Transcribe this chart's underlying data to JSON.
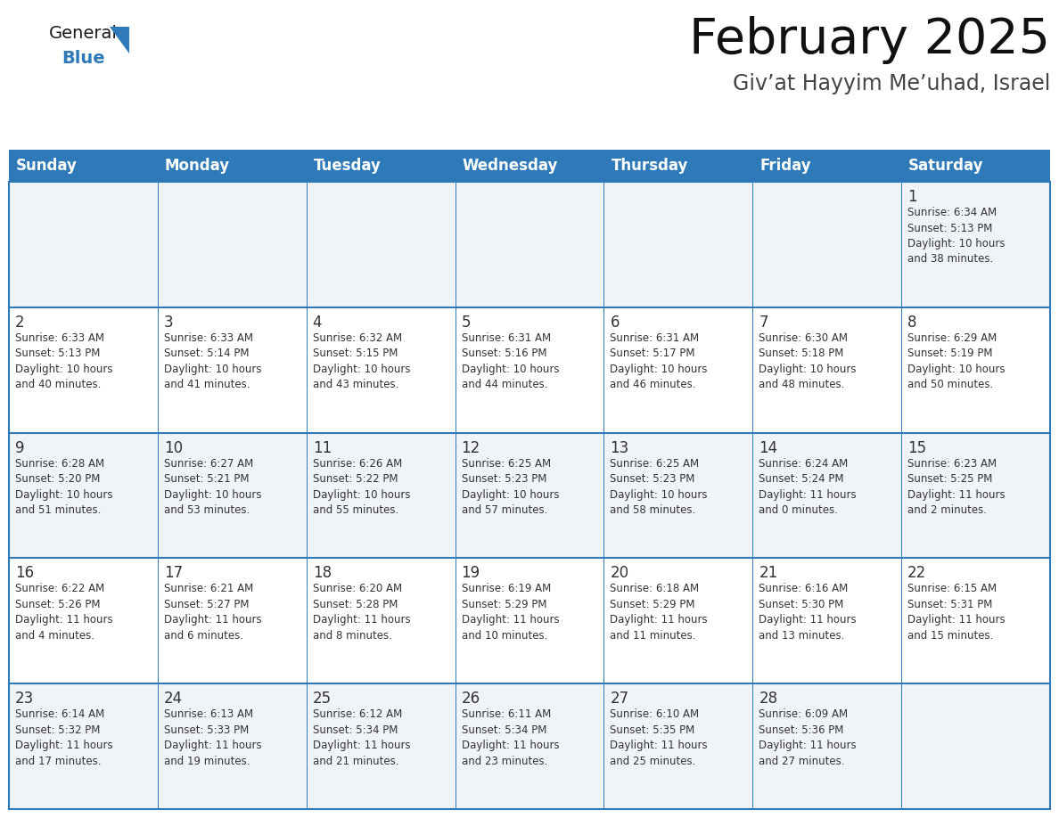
{
  "title": "February 2025",
  "subtitle": "Giv’at Hayyim Me’uhad, Israel",
  "header_bg": "#2E7AB8",
  "header_text_color": "#FFFFFF",
  "cell_border_color": "#2E7AB8",
  "day_number_color": "#333333",
  "detail_text_color": "#333333",
  "background_color": "#FFFFFF",
  "cell_bg_odd": "#F0F4F8",
  "cell_bg_even": "#FFFFFF",
  "days_of_week": [
    "Sunday",
    "Monday",
    "Tuesday",
    "Wednesday",
    "Thursday",
    "Friday",
    "Saturday"
  ],
  "weeks": [
    [
      {
        "day": "",
        "sunrise": "",
        "sunset": "",
        "daylight": ""
      },
      {
        "day": "",
        "sunrise": "",
        "sunset": "",
        "daylight": ""
      },
      {
        "day": "",
        "sunrise": "",
        "sunset": "",
        "daylight": ""
      },
      {
        "day": "",
        "sunrise": "",
        "sunset": "",
        "daylight": ""
      },
      {
        "day": "",
        "sunrise": "",
        "sunset": "",
        "daylight": ""
      },
      {
        "day": "",
        "sunrise": "",
        "sunset": "",
        "daylight": ""
      },
      {
        "day": "1",
        "sunrise": "6:34 AM",
        "sunset": "5:13 PM",
        "daylight": "10 hours\nand 38 minutes."
      }
    ],
    [
      {
        "day": "2",
        "sunrise": "6:33 AM",
        "sunset": "5:13 PM",
        "daylight": "10 hours\nand 40 minutes."
      },
      {
        "day": "3",
        "sunrise": "6:33 AM",
        "sunset": "5:14 PM",
        "daylight": "10 hours\nand 41 minutes."
      },
      {
        "day": "4",
        "sunrise": "6:32 AM",
        "sunset": "5:15 PM",
        "daylight": "10 hours\nand 43 minutes."
      },
      {
        "day": "5",
        "sunrise": "6:31 AM",
        "sunset": "5:16 PM",
        "daylight": "10 hours\nand 44 minutes."
      },
      {
        "day": "6",
        "sunrise": "6:31 AM",
        "sunset": "5:17 PM",
        "daylight": "10 hours\nand 46 minutes."
      },
      {
        "day": "7",
        "sunrise": "6:30 AM",
        "sunset": "5:18 PM",
        "daylight": "10 hours\nand 48 minutes."
      },
      {
        "day": "8",
        "sunrise": "6:29 AM",
        "sunset": "5:19 PM",
        "daylight": "10 hours\nand 50 minutes."
      }
    ],
    [
      {
        "day": "9",
        "sunrise": "6:28 AM",
        "sunset": "5:20 PM",
        "daylight": "10 hours\nand 51 minutes."
      },
      {
        "day": "10",
        "sunrise": "6:27 AM",
        "sunset": "5:21 PM",
        "daylight": "10 hours\nand 53 minutes."
      },
      {
        "day": "11",
        "sunrise": "6:26 AM",
        "sunset": "5:22 PM",
        "daylight": "10 hours\nand 55 minutes."
      },
      {
        "day": "12",
        "sunrise": "6:25 AM",
        "sunset": "5:23 PM",
        "daylight": "10 hours\nand 57 minutes."
      },
      {
        "day": "13",
        "sunrise": "6:25 AM",
        "sunset": "5:23 PM",
        "daylight": "10 hours\nand 58 minutes."
      },
      {
        "day": "14",
        "sunrise": "6:24 AM",
        "sunset": "5:24 PM",
        "daylight": "11 hours\nand 0 minutes."
      },
      {
        "day": "15",
        "sunrise": "6:23 AM",
        "sunset": "5:25 PM",
        "daylight": "11 hours\nand 2 minutes."
      }
    ],
    [
      {
        "day": "16",
        "sunrise": "6:22 AM",
        "sunset": "5:26 PM",
        "daylight": "11 hours\nand 4 minutes."
      },
      {
        "day": "17",
        "sunrise": "6:21 AM",
        "sunset": "5:27 PM",
        "daylight": "11 hours\nand 6 minutes."
      },
      {
        "day": "18",
        "sunrise": "6:20 AM",
        "sunset": "5:28 PM",
        "daylight": "11 hours\nand 8 minutes."
      },
      {
        "day": "19",
        "sunrise": "6:19 AM",
        "sunset": "5:29 PM",
        "daylight": "11 hours\nand 10 minutes."
      },
      {
        "day": "20",
        "sunrise": "6:18 AM",
        "sunset": "5:29 PM",
        "daylight": "11 hours\nand 11 minutes."
      },
      {
        "day": "21",
        "sunrise": "6:16 AM",
        "sunset": "5:30 PM",
        "daylight": "11 hours\nand 13 minutes."
      },
      {
        "day": "22",
        "sunrise": "6:15 AM",
        "sunset": "5:31 PM",
        "daylight": "11 hours\nand 15 minutes."
      }
    ],
    [
      {
        "day": "23",
        "sunrise": "6:14 AM",
        "sunset": "5:32 PM",
        "daylight": "11 hours\nand 17 minutes."
      },
      {
        "day": "24",
        "sunrise": "6:13 AM",
        "sunset": "5:33 PM",
        "daylight": "11 hours\nand 19 minutes."
      },
      {
        "day": "25",
        "sunrise": "6:12 AM",
        "sunset": "5:34 PM",
        "daylight": "11 hours\nand 21 minutes."
      },
      {
        "day": "26",
        "sunrise": "6:11 AM",
        "sunset": "5:34 PM",
        "daylight": "11 hours\nand 23 minutes."
      },
      {
        "day": "27",
        "sunrise": "6:10 AM",
        "sunset": "5:35 PM",
        "daylight": "11 hours\nand 25 minutes."
      },
      {
        "day": "28",
        "sunrise": "6:09 AM",
        "sunset": "5:36 PM",
        "daylight": "11 hours\nand 27 minutes."
      },
      {
        "day": "",
        "sunrise": "",
        "sunset": "",
        "daylight": ""
      }
    ]
  ],
  "logo_text_general": "General",
  "logo_text_blue": "Blue",
  "logo_color_general": "#1a1a1a",
  "logo_color_blue": "#2E7AB8",
  "logo_triangle_color": "#2E7AB8",
  "fig_width": 11.88,
  "fig_height": 9.18,
  "dpi": 100
}
